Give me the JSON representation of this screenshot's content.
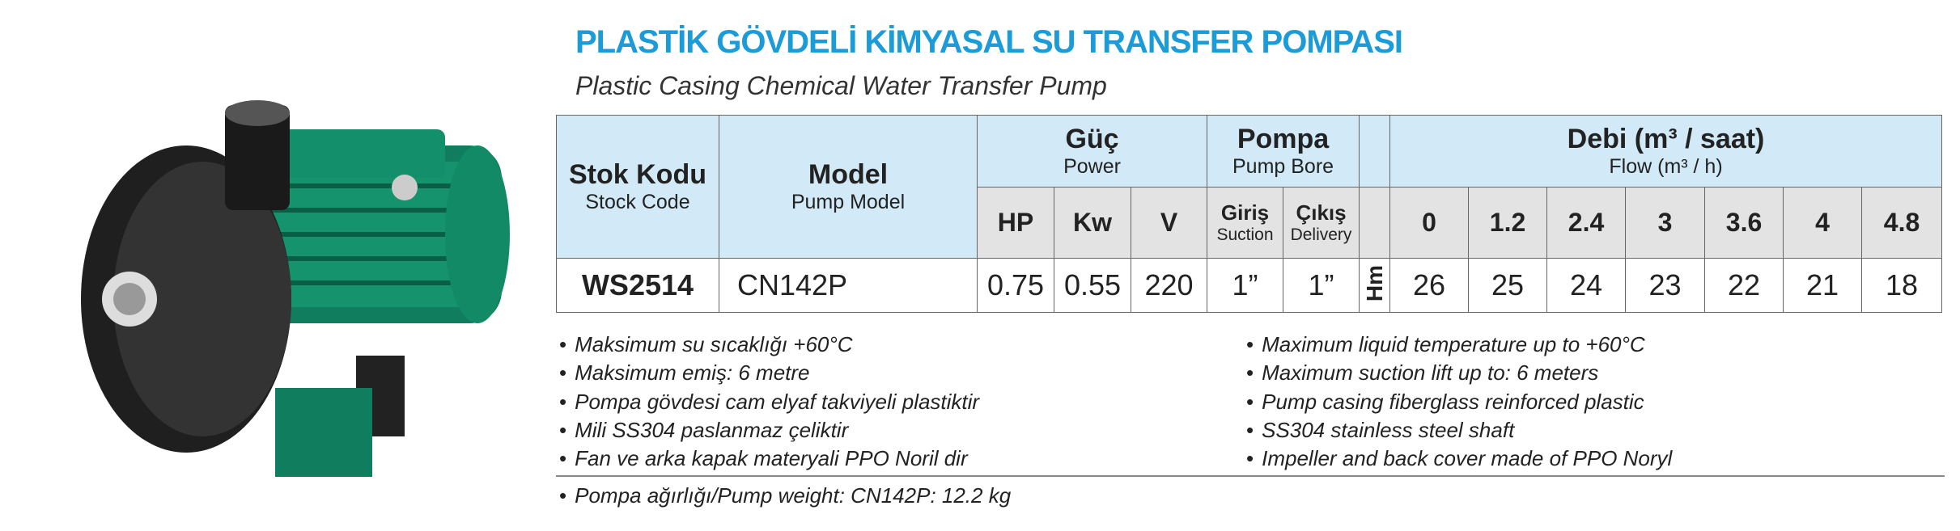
{
  "header": {
    "title": "PLASTİK GÖVDELİ KİMYASAL SU TRANSFER POMPASI",
    "subtitle": "Plastic Casing Chemical Water Transfer Pump"
  },
  "table": {
    "groups": [
      {
        "tr": "Stok Kodu",
        "en": "Stock Code"
      },
      {
        "tr": "Model",
        "en": "Pump Model"
      },
      {
        "tr": "Güç",
        "en": "Power"
      },
      {
        "tr": "Pompa",
        "en": "Pump Bore"
      },
      {
        "tr": "Debi (m³ / saat)",
        "en": "Flow (m³ / h)"
      }
    ],
    "power_units": [
      "HP",
      "Kw",
      "V"
    ],
    "bore": [
      {
        "tr": "Giriş",
        "en": "Suction"
      },
      {
        "tr": "Çıkış",
        "en": "Delivery"
      }
    ],
    "flows": [
      "0",
      "1.2",
      "2.4",
      "3",
      "3.6",
      "4",
      "4.8"
    ],
    "row": [
      "WS2514",
      "CN142P",
      "0.75",
      "0.55",
      "220",
      "1”",
      "1”"
    ],
    "head_label": "Hm",
    "heads": [
      "26",
      "25",
      "24",
      "23",
      "22",
      "21",
      "18"
    ]
  },
  "notes_tr": [
    "Maksimum su sıcaklığı +60°C",
    "Maksimum emiş: 6 metre",
    "Pompa gövdesi cam elyaf takviyeli plastiktir",
    "Mili SS304 paslanmaz çeliktir",
    "Fan ve arka kapak materyali PPO Noril dir"
  ],
  "notes_en": [
    "Maximum liquid temperature  up to +60°C",
    "Maximum suction lift up to: 6 meters",
    "Pump casing fiberglass reinforced plastic",
    "SS304 stainless steel shaft",
    "Impeller and back cover made of PPO Noryl"
  ],
  "weight": "Pompa ağırlığı/Pump weight: CN142P: 12.2 kg"
}
